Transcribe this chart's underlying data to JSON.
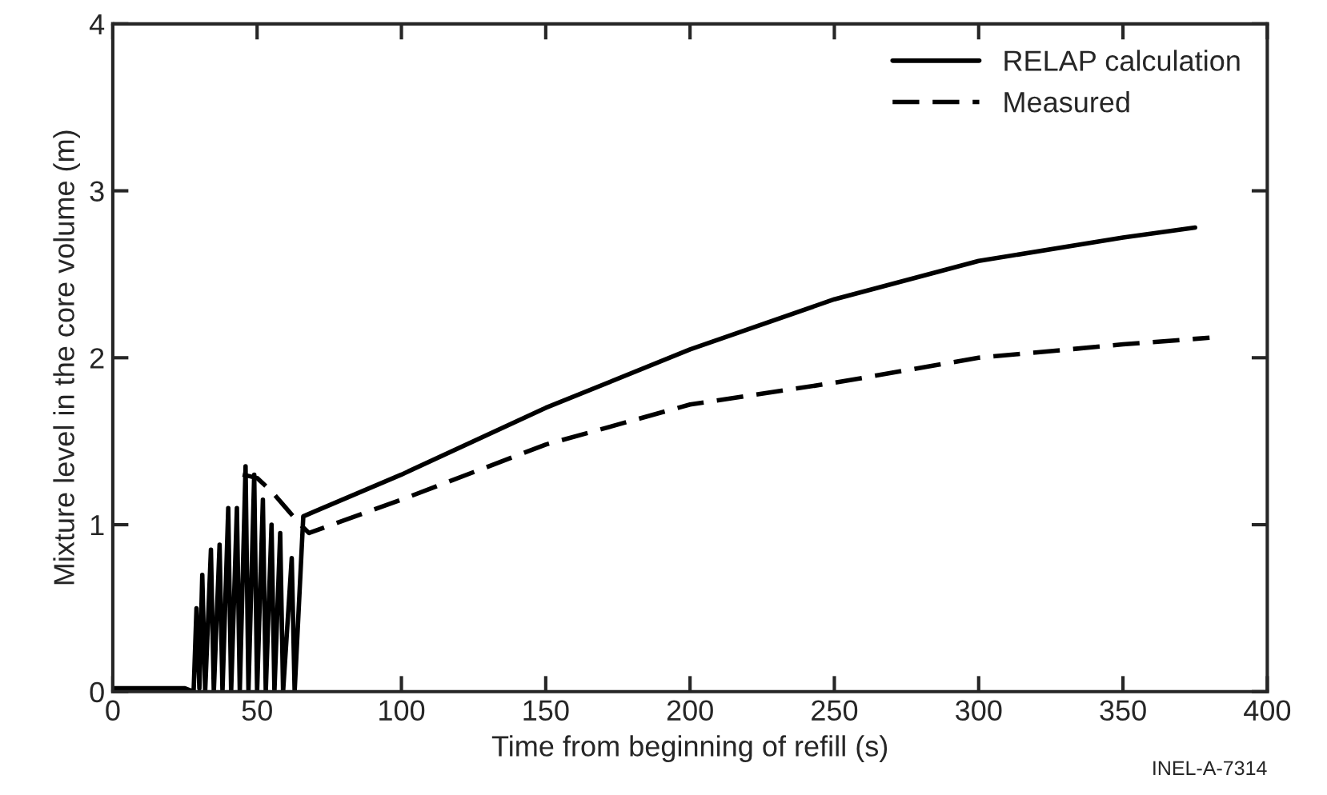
{
  "chart_data": {
    "type": "line",
    "xlabel": "Time from beginning of refill (s)",
    "ylabel": "Mixture level in the core volume (m)",
    "xlim": [
      0,
      400
    ],
    "ylim": [
      0,
      4
    ],
    "xticks": [
      0,
      50,
      100,
      150,
      200,
      250,
      300,
      350,
      400
    ],
    "yticks": [
      0,
      1,
      2,
      3,
      4
    ],
    "grid": false,
    "legend": "top right",
    "series": [
      {
        "name": "RELAP calculation",
        "color": "#000000",
        "line_style": "solid",
        "x": [
          0,
          25,
          28,
          29,
          30,
          31,
          32,
          34,
          35,
          37,
          38,
          40,
          41,
          43,
          44,
          46,
          47,
          49,
          50,
          52,
          53,
          55,
          56,
          58,
          59,
          62,
          63,
          66,
          70,
          100,
          150,
          200,
          250,
          300,
          350,
          375
        ],
        "values": [
          0.02,
          0.02,
          0,
          0.5,
          0.02,
          0.7,
          0,
          0.85,
          0,
          0.88,
          0,
          1.1,
          0,
          1.1,
          0,
          1.35,
          0,
          1.3,
          0,
          1.15,
          0,
          1.0,
          0,
          0.95,
          0,
          0.8,
          0,
          1.05,
          1.08,
          1.3,
          1.7,
          2.05,
          2.35,
          2.58,
          2.72,
          2.78
        ]
      },
      {
        "name": "Measured",
        "color": "#000000",
        "line_style": "dashed",
        "x": [
          45,
          50,
          55,
          60,
          65,
          68,
          100,
          150,
          200,
          250,
          300,
          350,
          380
        ],
        "values": [
          1.3,
          1.28,
          1.2,
          1.1,
          1.0,
          0.95,
          1.15,
          1.48,
          1.72,
          1.85,
          2.0,
          2.08,
          2.12
        ]
      }
    ],
    "annotations": [
      "INEL-A-7314"
    ]
  }
}
